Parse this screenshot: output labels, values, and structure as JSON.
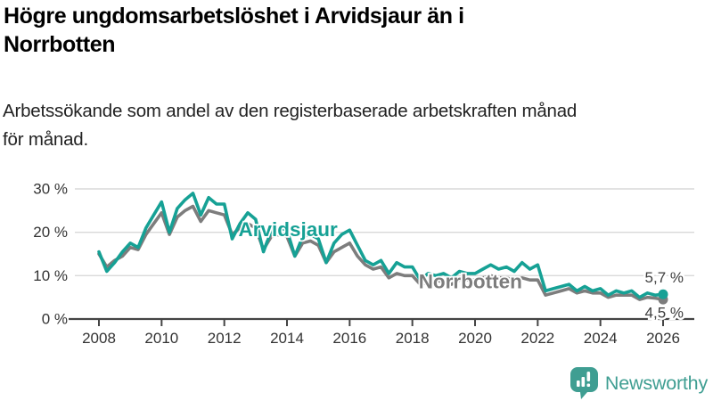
{
  "header": {
    "title_lines": [
      "Högre ungdomsarbetslöshet i Arvidsjaur än i",
      "Norrbotten"
    ],
    "subtitle_lines": [
      "Arbetssökande som andel av den registerbaserade arbetskraften månad",
      "för månad."
    ]
  },
  "logo": {
    "text": "Newsworthy",
    "color": "#3f9e92",
    "icon": "bar-chart-speech-bubble-icon"
  },
  "colors": {
    "arvidsjaur_line": "#16a195",
    "norrbotten_line": "#7d7d7d",
    "gridline": "#d9d9d9",
    "axis": "#444444",
    "tick_text": "#333333",
    "end_label_text": "#3d3d3d"
  },
  "chart_data": {
    "type": "line",
    "title": "Högre ungdomsarbetslöshet i Arvidsjaur än i Norrbotten",
    "subtitle": "Arbetssökande som andel av den registerbaserade arbetskraften månad för månad.",
    "xlabel": "",
    "ylabel": "",
    "grid": true,
    "legend_position": "inline-labels",
    "x_start": 2008,
    "x_step": 0.25,
    "xlim": [
      2007.25,
      2027
    ],
    "ylim": [
      0,
      32
    ],
    "x_ticks": [
      2008,
      2010,
      2012,
      2014,
      2016,
      2018,
      2020,
      2022,
      2024,
      2026
    ],
    "y_ticks": [
      {
        "v": 0,
        "label": "0 %"
      },
      {
        "v": 10,
        "label": "10 %"
      },
      {
        "v": 20,
        "label": "20 %"
      },
      {
        "v": 30,
        "label": "30 %"
      }
    ],
    "series": [
      {
        "name": "Norrbotten",
        "color": "#7d7d7d",
        "label_pos": {
          "x": 2018.2,
          "y": 8.6
        },
        "end_label": {
          "text": "4,5 %",
          "y_pct": 1.4
        },
        "values": [
          15.0,
          12.0,
          13.5,
          14.5,
          16.5,
          16.0,
          19.5,
          22.0,
          24.5,
          19.5,
          23.5,
          25.0,
          26.0,
          22.5,
          25.0,
          24.5,
          24.0,
          19.5,
          21.0,
          22.0,
          21.0,
          16.0,
          19.0,
          19.5,
          19.0,
          14.5,
          17.5,
          18.0,
          17.0,
          13.0,
          15.5,
          16.5,
          17.5,
          14.5,
          12.5,
          11.5,
          12.0,
          9.5,
          10.5,
          10.0,
          10.0,
          8.0,
          8.5,
          9.0,
          8.5,
          8.0,
          9.0,
          9.0,
          9.0,
          9.5,
          10.0,
          9.5,
          9.5,
          9.0,
          9.5,
          9.0,
          9.0,
          5.5,
          6.0,
          6.5,
          7.0,
          6.0,
          6.5,
          6.0,
          6.0,
          5.0,
          5.5,
          5.5,
          5.5,
          4.5,
          5.0,
          4.8,
          4.5
        ]
      },
      {
        "name": "Arvidsjaur",
        "color": "#16a195",
        "label_pos": {
          "x": 2012.45,
          "y": 20.6
        },
        "end_label": {
          "text": "5,7 %",
          "y_pct": 9.6
        },
        "values": [
          15.5,
          11.0,
          13.0,
          15.5,
          17.5,
          16.5,
          21.0,
          24.0,
          27.0,
          20.0,
          25.5,
          27.5,
          29.0,
          24.0,
          28.0,
          26.5,
          26.5,
          18.5,
          22.0,
          24.5,
          23.0,
          15.5,
          20.5,
          21.0,
          20.5,
          14.5,
          19.0,
          19.5,
          18.5,
          13.0,
          17.5,
          19.5,
          20.5,
          17.0,
          13.5,
          12.5,
          13.5,
          10.5,
          13.0,
          12.0,
          12.0,
          9.0,
          10.5,
          10.0,
          10.5,
          9.5,
          11.0,
          10.5,
          10.5,
          11.5,
          12.5,
          11.5,
          12.0,
          11.0,
          13.0,
          11.5,
          12.5,
          6.5,
          7.0,
          7.5,
          8.0,
          6.5,
          7.5,
          6.5,
          7.0,
          5.5,
          6.5,
          6.0,
          6.5,
          5.0,
          6.0,
          5.5,
          5.7
        ]
      }
    ]
  }
}
